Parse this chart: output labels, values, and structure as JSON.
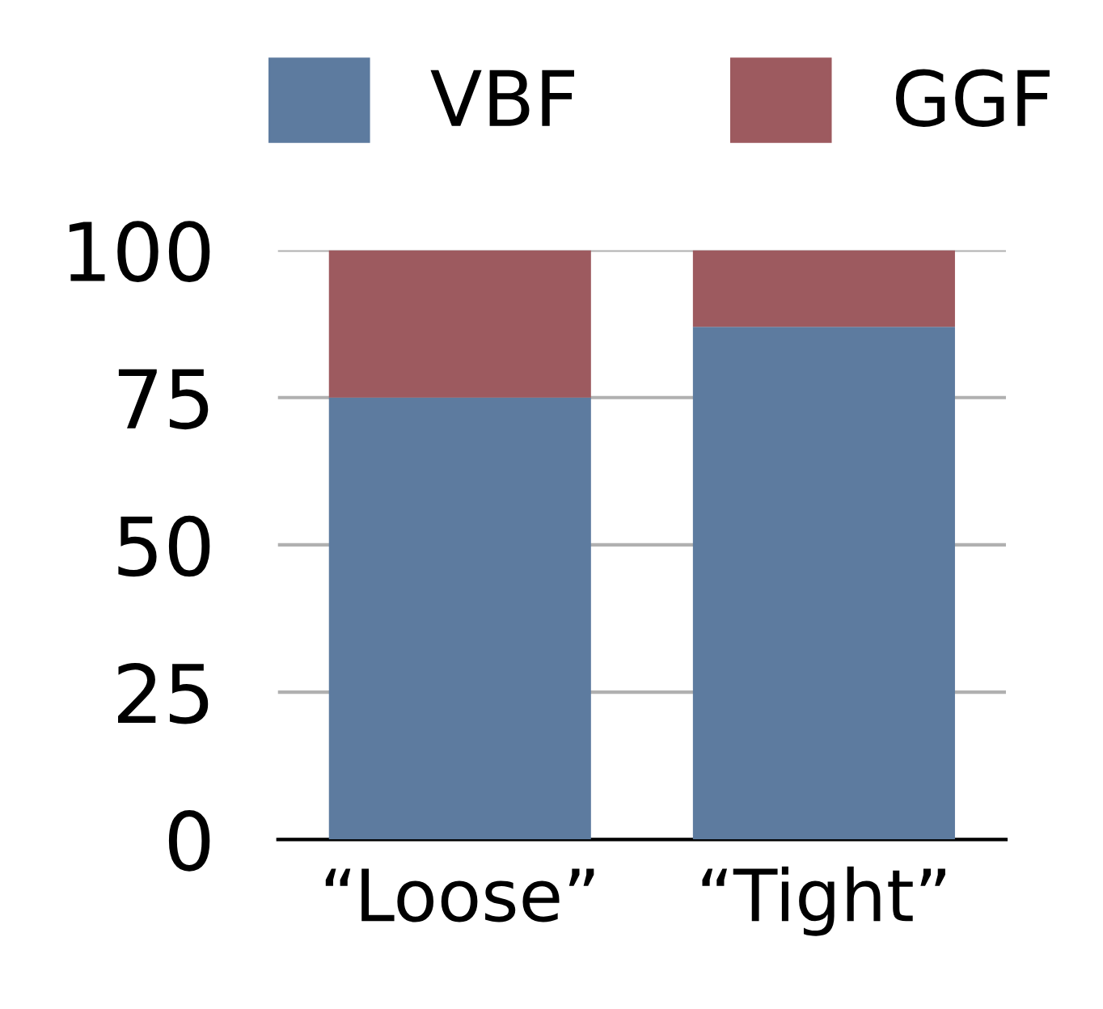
{
  "chart_data": {
    "type": "bar",
    "stacked": true,
    "categories": [
      "“Loose”",
      "“Tight”"
    ],
    "series": [
      {
        "name": "VBF",
        "color": "#5d7b9f",
        "values": [
          75,
          87
        ]
      },
      {
        "name": "GGF",
        "color": "#9d5a5f",
        "values": [
          25,
          13
        ]
      }
    ],
    "ylim": [
      0,
      100
    ],
    "yticks": [
      0,
      25,
      50,
      75,
      100
    ],
    "grid": "y",
    "legend": "top"
  }
}
